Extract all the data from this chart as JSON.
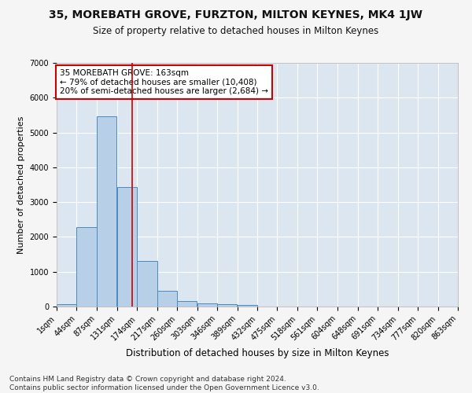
{
  "title": "35, MOREBATH GROVE, FURZTON, MILTON KEYNES, MK4 1JW",
  "subtitle": "Size of property relative to detached houses in Milton Keynes",
  "xlabel": "Distribution of detached houses by size in Milton Keynes",
  "ylabel": "Number of detached properties",
  "footer_line1": "Contains HM Land Registry data © Crown copyright and database right 2024.",
  "footer_line2": "Contains public sector information licensed under the Open Government Licence v3.0.",
  "annotation_line1": "35 MOREBATH GROVE: 163sqm",
  "annotation_line2": "← 79% of detached houses are smaller (10,408)",
  "annotation_line3": "20% of semi-detached houses are larger (2,684) →",
  "property_size": 163,
  "bar_bins": [
    1,
    44,
    87,
    131,
    174,
    217,
    260,
    303,
    346,
    389,
    432,
    475,
    518,
    561,
    604,
    648,
    691,
    734,
    777,
    820,
    863
  ],
  "bar_heights": [
    75,
    2290,
    5470,
    3430,
    1310,
    460,
    165,
    85,
    65,
    45,
    0,
    0,
    0,
    0,
    0,
    0,
    0,
    0,
    0,
    0
  ],
  "bar_color": "#b8cfe8",
  "bar_edge_color": "#4a8abf",
  "vline_color": "#cc0000",
  "vline_x": 163,
  "ylim": [
    0,
    7000
  ],
  "xlim": [
    1,
    863
  ],
  "background_color": "#dce6f0",
  "grid_color": "#ffffff",
  "annotation_box_color": "#ffffff",
  "annotation_box_edge": "#cc0000",
  "title_fontsize": 10,
  "subtitle_fontsize": 8.5,
  "axis_label_fontsize": 8,
  "tick_fontsize": 7,
  "annotation_fontsize": 7.5,
  "footer_fontsize": 6.5,
  "fig_bg": "#f5f5f5"
}
